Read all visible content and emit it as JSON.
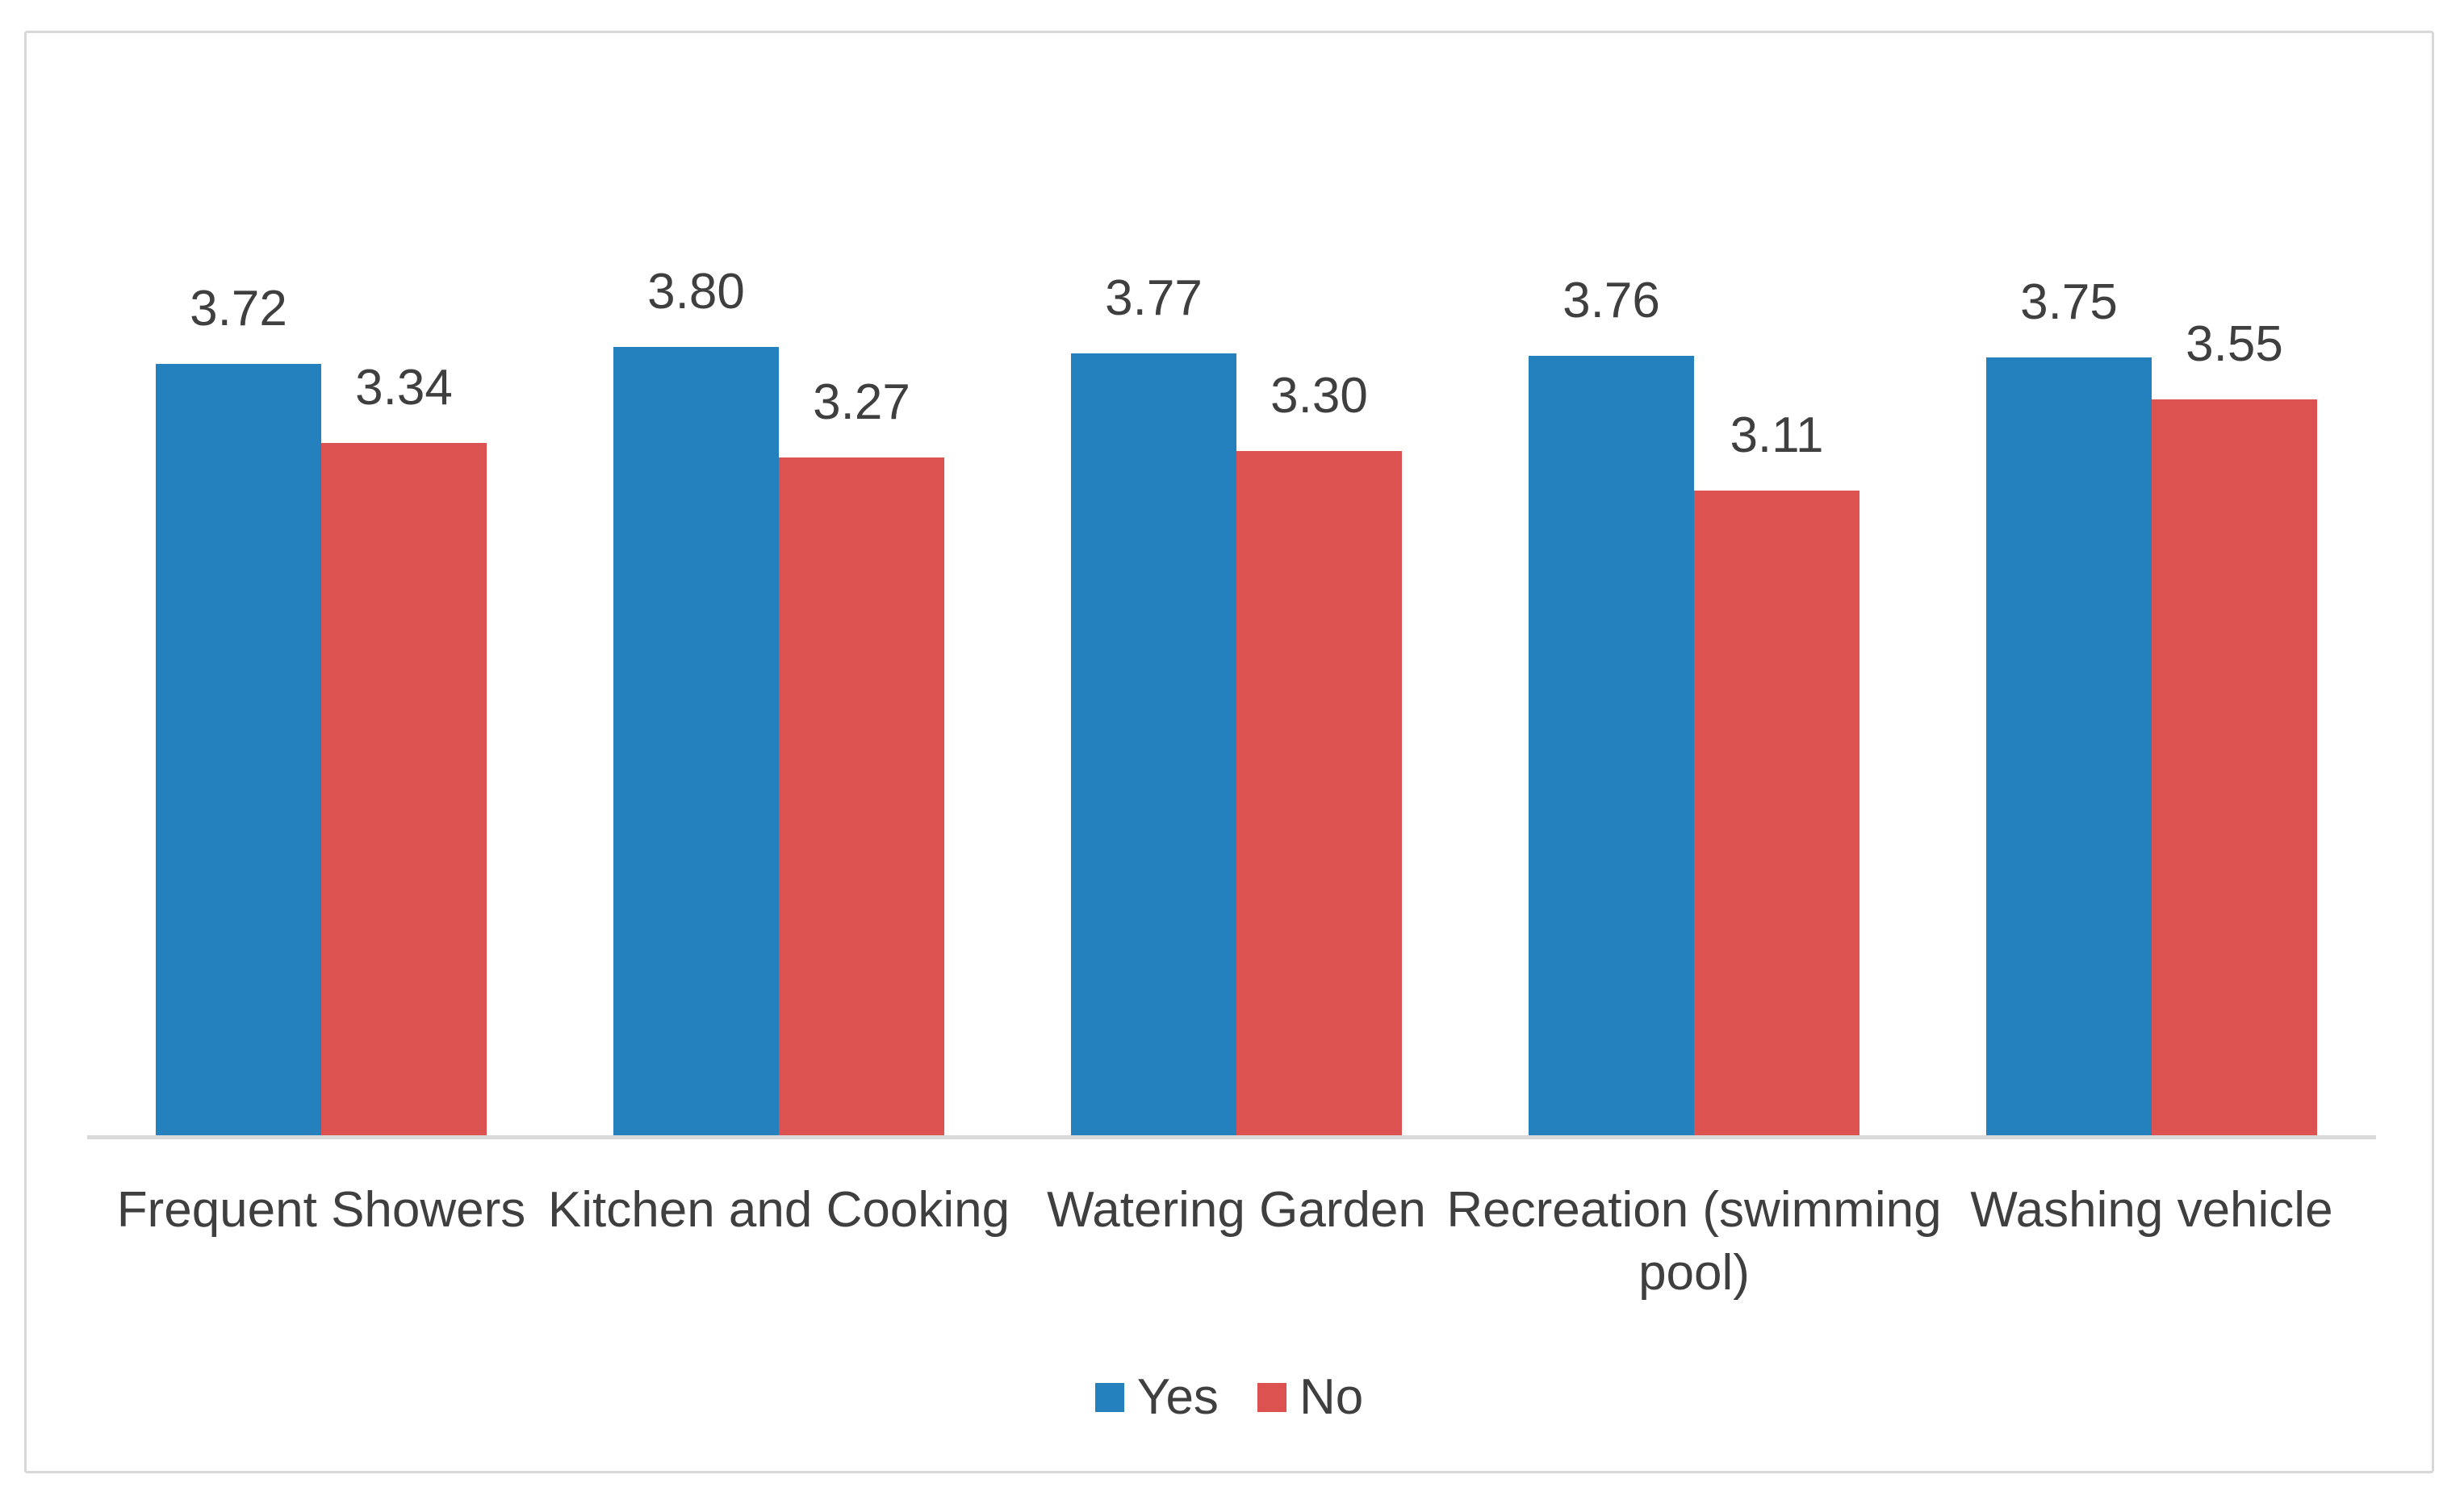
{
  "chart_data": {
    "type": "bar",
    "title": "",
    "xlabel": "",
    "ylabel": "",
    "categories": [
      "Frequent Showers",
      "Kitchen and Cooking",
      "Watering Garden",
      "Recreation (swimming pool)",
      "Washing vehicle"
    ],
    "series": [
      {
        "name": "Yes",
        "color": "#2580BE",
        "values": [
          3.72,
          3.8,
          3.77,
          3.76,
          3.75
        ],
        "value_labels": [
          "3.72",
          "3.80",
          "3.77",
          "3.76",
          "3.75"
        ]
      },
      {
        "name": "No",
        "color": "#DB5250",
        "values": [
          3.34,
          3.27,
          3.3,
          3.11,
          3.55
        ],
        "value_labels": [
          "3.34",
          "3.27",
          "3.30",
          "3.11",
          "3.55"
        ]
      }
    ],
    "legend_position": "bottom",
    "data_labels": true,
    "gridlines": false,
    "value_axis": {
      "min": 0,
      "visible": false
    },
    "category_axis": {
      "visible": true,
      "line_color": "#D9D9D9"
    }
  },
  "colors": {
    "text": "#3F3F3F",
    "axis_line": "#D9D9D9",
    "panel_border": "#D8D8D8",
    "background": "#FFFFFF"
  }
}
